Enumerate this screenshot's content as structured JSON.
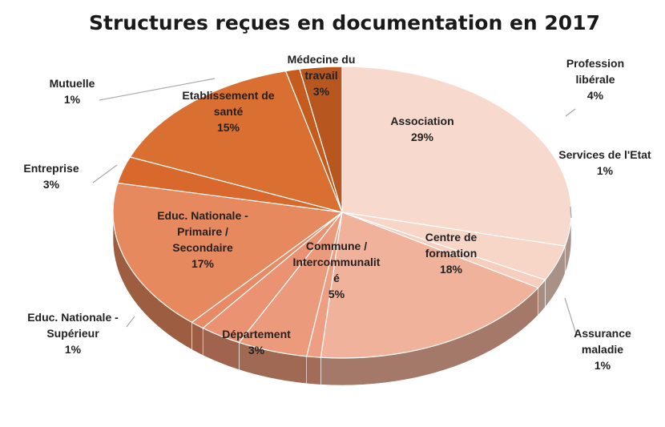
{
  "chart_data": {
    "type": "pie",
    "title": "Structures reçues en documentation en 2017",
    "slices": [
      {
        "label": [
          "Association"
        ],
        "value": 29,
        "pct": "29%",
        "color": "#f7d9cd"
      },
      {
        "label": [
          "Profession",
          "libérale"
        ],
        "value": 4,
        "pct": "4%",
        "color": "#f7d6c8"
      },
      {
        "label": [
          "Services de l'Etat"
        ],
        "value": 1,
        "pct": "1%",
        "color": "#f5cebe"
      },
      {
        "label": [
          "Centre de",
          "formation"
        ],
        "value": 18,
        "pct": "18%",
        "color": "#f1b29b"
      },
      {
        "label": [
          "Assurance",
          "maladie"
        ],
        "value": 1,
        "pct": "1%",
        "color": "#ee9f83"
      },
      {
        "label": [
          "Commune /",
          "Intercommunalit",
          "é"
        ],
        "value": 5,
        "pct": "5%",
        "color": "#ec9a7c"
      },
      {
        "label": [
          "Département"
        ],
        "value": 3,
        "pct": "3%",
        "color": "#ea9272"
      },
      {
        "label": [
          "Educ. Nationale -",
          "Supérieur"
        ],
        "value": 1,
        "pct": "1%",
        "color": "#e88a66"
      },
      {
        "label": [
          "Educ. Nationale -",
          "Primaire /",
          "Secondaire"
        ],
        "value": 17,
        "pct": "17%",
        "color": "#e7895f"
      },
      {
        "label": [
          "Entreprise"
        ],
        "value": 3,
        "pct": "3%",
        "color": "#d9682c"
      },
      {
        "label": [
          "Etablissement de",
          "santé"
        ],
        "value": 15,
        "pct": "15%",
        "color": "#d96f30"
      },
      {
        "label": [
          "Mutuelle"
        ],
        "value": 1,
        "pct": "1%",
        "color": "#c55c1e"
      },
      {
        "label": [
          "Médecine du",
          "travail"
        ],
        "value": 3,
        "pct": "3%",
        "color": "#b8561f"
      }
    ]
  }
}
